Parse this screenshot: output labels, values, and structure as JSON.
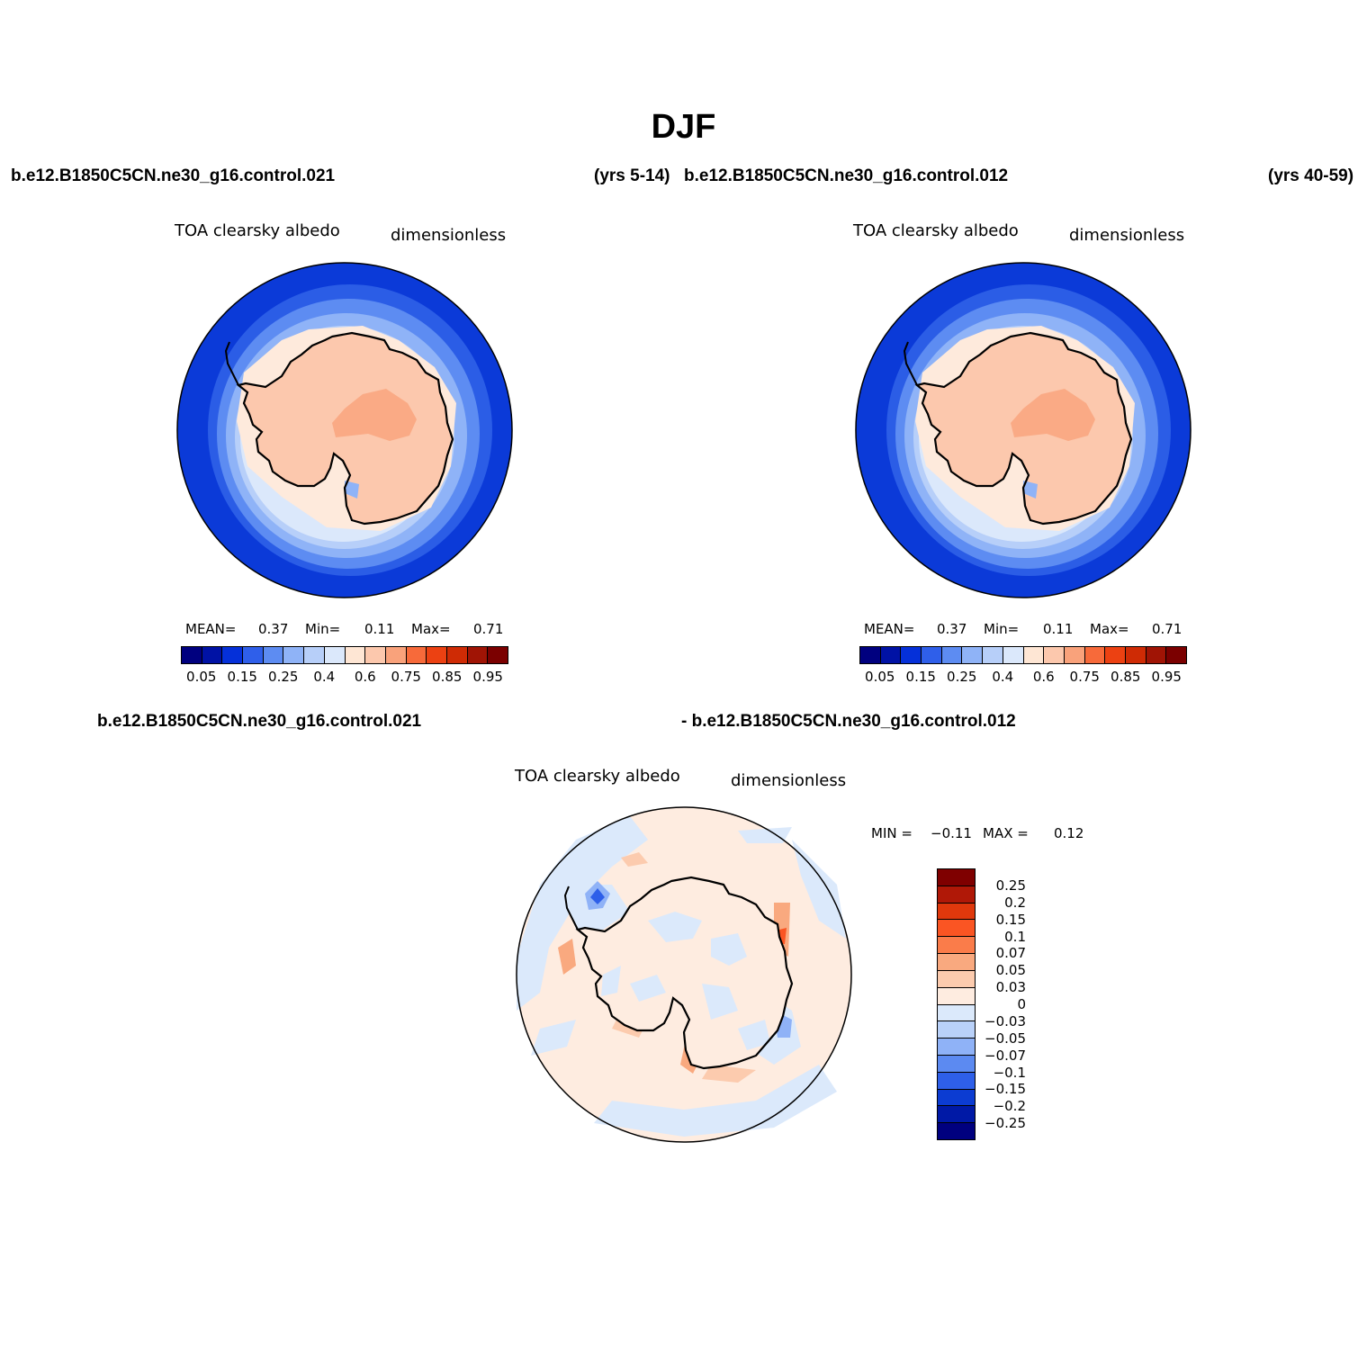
{
  "title": "DJF",
  "cases": {
    "top_left_case": "b.e12.B1850C5CN.ne30_g16.control.021",
    "top_left_years": "(yrs 5-14)",
    "top_right_case": "b.e12.B1850C5CN.ne30_g16.control.012",
    "top_right_years": "(yrs 40-59)",
    "diff_case_a": "b.e12.B1850C5CN.ne30_g16.control.021",
    "diff_case_b": "- b.e12.B1850C5CN.ne30_g16.control.012"
  },
  "panels": {
    "left": {
      "variable": "TOA clearsky albedo",
      "units": "dimensionless",
      "mean_label": "MEAN=",
      "mean_value": "0.37",
      "min_label": "Min=",
      "min_value": "0.11",
      "max_label": "Max=",
      "max_value": "0.71"
    },
    "right": {
      "variable": "TOA clearsky albedo",
      "units": "dimensionless",
      "mean_label": "MEAN=",
      "mean_value": "0.37",
      "min_label": "Min=",
      "min_value": "0.11",
      "max_label": "Max=",
      "max_value": "0.71"
    },
    "diff": {
      "variable": "TOA clearsky albedo",
      "units": "dimensionless",
      "min_label": "MIN =",
      "min_value": "−0.11",
      "max_label": "MAX =",
      "max_value": "0.12"
    }
  },
  "colorbars": {
    "main": {
      "colors": [
        "#00007f",
        "#0012a5",
        "#0530d9",
        "#2f5fea",
        "#5d8cf2",
        "#8fb3f7",
        "#b7cff9",
        "#dbe8fb",
        "#fee6d4",
        "#fcc8ad",
        "#f9a27b",
        "#f76a3a",
        "#ec4112",
        "#cf2b05",
        "#a01405",
        "#7b0000"
      ],
      "tick_labels": [
        "0.05",
        "0.15",
        "0.25",
        "0.4",
        "0.6",
        "0.75",
        "0.85",
        "0.95"
      ]
    },
    "diff": {
      "colors_top_to_bottom": [
        "#7f0000",
        "#b01807",
        "#e0380c",
        "#fa5523",
        "#fa7c4a",
        "#f9a97f",
        "#fccbae",
        "#feece0",
        "#dbe9fb",
        "#b9d1f9",
        "#8fb2f7",
        "#5c8af1",
        "#2e5fe9",
        "#0c3cd2",
        "#0019a6",
        "#00007f"
      ],
      "tick_labels": [
        "0.25",
        "0.2",
        "0.15",
        "0.1",
        "0.07",
        "0.05",
        "0.03",
        "0",
        "−0.03",
        "−0.05",
        "−0.07",
        "−0.1",
        "−0.15",
        "−0.2",
        "−0.25"
      ]
    }
  }
}
